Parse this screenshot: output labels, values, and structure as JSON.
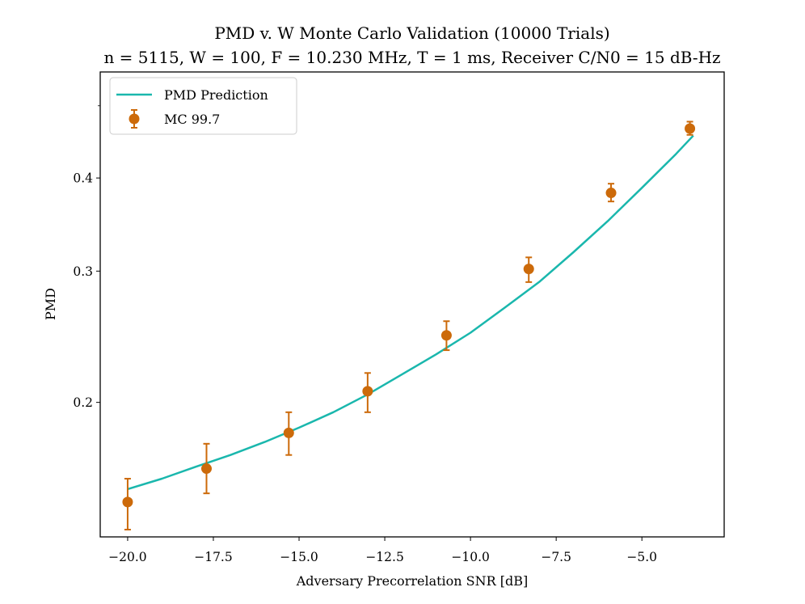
{
  "chart_data": {
    "type": "line",
    "title": "PMD v. W Monte Carlo Validation (10000 Trials)",
    "subtitle": "n = 5115, W = 100, F = 10.230 MHz, T = 1 ms, Receiver C/N0 = 15 dB-Hz",
    "xlabel": "Adversary Precorrelation SNR [dB]",
    "ylabel": "PMD",
    "xlim": [
      -20.8,
      -2.6
    ],
    "ylim": [
      0.132,
      0.555
    ],
    "yscale": "log",
    "xticks": [
      -20.0,
      -17.5,
      -15.0,
      -12.5,
      -10.0,
      -7.5,
      -5.0
    ],
    "xtick_labels": [
      "−20.0",
      "−17.5",
      "−15.0",
      "−12.5",
      "−10.0",
      "−7.5",
      "−5.0"
    ],
    "yticks": [
      0.2,
      0.3,
      0.4
    ],
    "ytick_labels": [
      "0.2",
      "0.3",
      "0.4"
    ],
    "legend_position": "upper-left",
    "series": [
      {
        "name": "PMD Prediction",
        "kind": "line",
        "color": "#1ab7ad",
        "x": [
          -20.0,
          -19.0,
          -18.0,
          -17.0,
          -16.0,
          -15.0,
          -14.0,
          -13.0,
          -12.0,
          -11.0,
          -10.0,
          -9.0,
          -8.0,
          -7.0,
          -6.0,
          -5.0,
          -4.0,
          -3.5
        ],
        "y": [
          0.153,
          0.158,
          0.164,
          0.17,
          0.177,
          0.185,
          0.194,
          0.205,
          0.218,
          0.232,
          0.248,
          0.268,
          0.29,
          0.318,
          0.35,
          0.388,
          0.431,
          0.456
        ]
      },
      {
        "name": "MC 99.7",
        "kind": "errorbar",
        "color": "#cc6a0a",
        "x": [
          -20.0,
          -17.7,
          -15.3,
          -13.0,
          -10.7,
          -8.3,
          -5.9,
          -3.6
        ],
        "y": [
          0.147,
          0.163,
          0.182,
          0.207,
          0.246,
          0.302,
          0.382,
          0.466
        ],
        "yerr_low": [
          0.012,
          0.012,
          0.012,
          0.013,
          0.011,
          0.012,
          0.01,
          0.009
        ],
        "yerr_high": [
          0.011,
          0.013,
          0.012,
          0.012,
          0.011,
          0.011,
          0.011,
          0.01
        ]
      }
    ]
  }
}
